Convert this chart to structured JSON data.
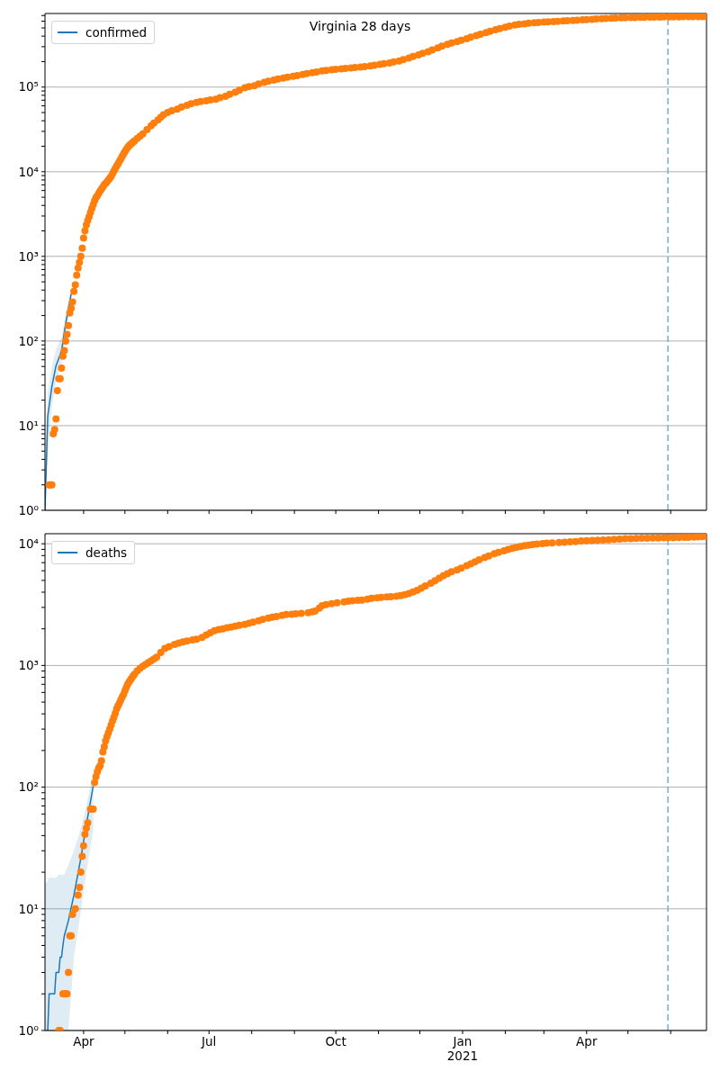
{
  "chart_data": [
    {
      "type": "line",
      "title": "Virginia 28 days",
      "log": "y",
      "grid": "y",
      "legend": "top left",
      "tick_labels": "y",
      "xlim": [
        "2020-03-04",
        "2021-06-27"
      ],
      "xticks": [
        {
          "value": "2020-04-01",
          "label": null
        },
        {
          "value": "2020-05-01",
          "label": null
        },
        {
          "value": "2020-06-01",
          "label": null
        },
        {
          "value": "2020-07-01",
          "label": null
        },
        {
          "value": "2020-08-01",
          "label": null
        },
        {
          "value": "2020-09-01",
          "label": null
        },
        {
          "value": "2020-10-01",
          "label": null
        },
        {
          "value": "2020-11-01",
          "label": null
        },
        {
          "value": "2020-12-01",
          "label": null
        },
        {
          "value": "2021-01-01",
          "label": null
        },
        {
          "value": "2021-02-01",
          "label": null
        },
        {
          "value": "2021-03-01",
          "label": null
        },
        {
          "value": "2021-04-01",
          "label": null
        },
        {
          "value": "2021-05-01",
          "label": null
        },
        {
          "value": "2021-06-01",
          "label": null
        }
      ],
      "ylim": [
        1,
        740000
      ],
      "yticks": [
        {
          "value": 1,
          "label": "10⁰"
        },
        {
          "value": 2,
          "label": null
        },
        {
          "value": 3,
          "label": null
        },
        {
          "value": 4,
          "label": null
        },
        {
          "value": 5,
          "label": null
        },
        {
          "value": 6,
          "label": null
        },
        {
          "value": 7,
          "label": null
        },
        {
          "value": 8,
          "label": null
        },
        {
          "value": 9,
          "label": null
        },
        {
          "value": 10,
          "label": "10¹"
        },
        {
          "value": 20,
          "label": null
        },
        {
          "value": 30,
          "label": null
        },
        {
          "value": 40,
          "label": null
        },
        {
          "value": 50,
          "label": null
        },
        {
          "value": 60,
          "label": null
        },
        {
          "value": 70,
          "label": null
        },
        {
          "value": 80,
          "label": null
        },
        {
          "value": 90,
          "label": null
        },
        {
          "value": 100,
          "label": "10²"
        },
        {
          "value": 200,
          "label": null
        },
        {
          "value": 300,
          "label": null
        },
        {
          "value": 400,
          "label": null
        },
        {
          "value": 500,
          "label": null
        },
        {
          "value": 600,
          "label": null
        },
        {
          "value": 700,
          "label": null
        },
        {
          "value": 800,
          "label": null
        },
        {
          "value": 900,
          "label": null
        },
        {
          "value": 1000,
          "label": "10³"
        },
        {
          "value": 2000,
          "label": null
        },
        {
          "value": 3000,
          "label": null
        },
        {
          "value": 4000,
          "label": null
        },
        {
          "value": 5000,
          "label": null
        },
        {
          "value": 6000,
          "label": null
        },
        {
          "value": 7000,
          "label": null
        },
        {
          "value": 8000,
          "label": null
        },
        {
          "value": 9000,
          "label": null
        },
        {
          "value": 10000,
          "label": "10⁴"
        },
        {
          "value": 20000,
          "label": null
        },
        {
          "value": 30000,
          "label": null
        },
        {
          "value": 40000,
          "label": null
        },
        {
          "value": 50000,
          "label": null
        },
        {
          "value": 60000,
          "label": null
        },
        {
          "value": 70000,
          "label": null
        },
        {
          "value": 80000,
          "label": null
        },
        {
          "value": 90000,
          "label": null
        },
        {
          "value": 100000,
          "label": "10⁵"
        },
        {
          "value": 200000,
          "label": null
        },
        {
          "value": 300000,
          "label": null
        },
        {
          "value": 400000,
          "label": null
        },
        {
          "value": 500000,
          "label": null
        },
        {
          "value": 600000,
          "label": null
        },
        {
          "value": 700000,
          "label": null
        }
      ],
      "ref_lines": [
        {
          "axis": "x",
          "value": "2021-05-30",
          "color": "#79aed4",
          "line_style": "dashed"
        }
      ],
      "series": [
        {
          "name": "confirmed",
          "type": "line",
          "color": "#1f77b4",
          "x": [
            "2020-03-04",
            "2020-03-06",
            "2020-03-09",
            "2020-03-12",
            "2020-03-16",
            "2020-03-19",
            "2020-03-23"
          ],
          "values": [
            1,
            13,
            29,
            51,
            76,
            160,
            360
          ],
          "lower": [
            1,
            5,
            17,
            33,
            55,
            120,
            290
          ],
          "upper": [
            3,
            25,
            50,
            80,
            110,
            210,
            440
          ]
        },
        {
          "type": "scatter",
          "color": "#ff7f0e",
          "marker": "circle",
          "x": [
            "2020-03-07",
            "2020-03-08",
            "2020-03-09",
            "2020-03-10",
            "2020-03-11",
            "2020-03-12",
            "2020-03-13",
            "2020-03-14",
            "2020-03-15",
            "2020-03-16",
            "2020-03-17",
            "2020-03-18",
            "2020-03-19",
            "2020-03-20",
            "2020-03-21",
            "2020-03-22",
            "2020-03-23",
            "2020-03-24",
            "2020-03-25",
            "2020-03-26",
            "2020-03-27",
            "2020-03-28",
            "2020-03-29",
            "2020-03-30",
            "2020-03-31",
            "2020-04-01",
            "2020-04-02",
            "2020-04-03",
            "2020-04-04",
            "2020-04-05",
            "2020-04-06",
            "2020-04-07",
            "2020-04-08",
            "2020-04-09",
            "2020-04-10",
            "2020-04-11",
            "2020-04-12",
            "2020-04-13",
            "2020-04-14",
            "2020-04-15",
            "2020-04-16",
            "2020-04-17",
            "2020-04-18",
            "2020-04-19",
            "2020-04-20",
            "2020-04-21",
            "2020-04-22",
            "2020-04-23",
            "2020-04-24",
            "2020-04-25",
            "2020-04-26",
            "2020-04-27",
            "2020-04-28",
            "2020-04-29",
            "2020-04-30",
            "2020-05-01",
            "2020-05-02",
            "2020-05-03",
            "2020-05-04",
            "2020-05-05",
            "2020-05-06",
            "2020-05-07",
            "2020-05-08",
            "2020-05-10",
            "2020-05-12",
            "2020-05-14",
            "2020-05-17",
            "2020-05-20",
            "2020-05-22",
            "2020-05-25",
            "2020-05-27",
            "2020-05-29",
            "2020-06-01",
            "2020-06-04",
            "2020-06-08",
            "2020-06-11",
            "2020-06-15",
            "2020-06-18",
            "2020-06-22",
            "2020-06-25",
            "2020-06-29",
            "2020-07-02",
            "2020-07-06",
            "2020-07-09",
            "2020-07-13",
            "2020-07-16",
            "2020-07-20",
            "2020-07-23",
            "2020-07-27",
            "2020-07-30",
            "2020-08-03",
            "2020-08-06",
            "2020-08-10",
            "2020-08-13",
            "2020-08-17",
            "2020-08-20",
            "2020-08-24",
            "2020-08-27",
            "2020-08-31",
            "2020-09-03",
            "2020-09-07",
            "2020-09-10",
            "2020-09-14",
            "2020-09-17",
            "2020-09-21",
            "2020-09-24",
            "2020-09-28",
            "2020-10-01",
            "2020-10-05",
            "2020-10-08",
            "2020-10-12",
            "2020-10-15",
            "2020-10-19",
            "2020-10-22",
            "2020-10-26",
            "2020-10-29",
            "2020-11-02",
            "2020-11-05",
            "2020-11-09",
            "2020-11-12",
            "2020-11-16",
            "2020-11-19",
            "2020-11-23",
            "2020-11-26",
            "2020-11-30",
            "2020-12-03",
            "2020-12-07",
            "2020-12-10",
            "2020-12-14",
            "2020-12-17",
            "2020-12-21",
            "2020-12-24",
            "2020-12-28",
            "2020-12-31",
            "2021-01-04",
            "2021-01-07",
            "2021-01-11",
            "2021-01-14",
            "2021-01-18",
            "2021-01-21",
            "2021-01-25",
            "2021-01-28",
            "2021-02-01",
            "2021-02-04",
            "2021-02-08",
            "2021-02-11",
            "2021-02-15",
            "2021-02-18",
            "2021-02-22",
            "2021-02-25",
            "2021-03-01",
            "2021-03-04",
            "2021-03-08",
            "2021-03-11",
            "2021-03-15",
            "2021-03-18",
            "2021-03-22",
            "2021-03-25",
            "2021-03-29",
            "2021-04-01",
            "2021-04-05",
            "2021-04-08",
            "2021-04-12",
            "2021-04-15",
            "2021-04-19",
            "2021-04-22",
            "2021-04-26",
            "2021-04-29",
            "2021-05-03",
            "2021-05-06",
            "2021-05-10",
            "2021-05-13",
            "2021-05-17",
            "2021-05-20",
            "2021-05-24",
            "2021-05-27",
            "2021-05-31",
            "2021-06-03",
            "2021-06-07",
            "2021-06-10",
            "2021-06-14",
            "2021-06-17",
            "2021-06-21",
            "2021-06-24",
            "2021-06-27"
          ],
          "values": [
            2,
            2,
            2,
            8,
            9,
            12,
            26,
            36,
            36,
            48,
            66,
            77,
            100,
            120,
            152,
            214,
            244,
            290,
            385,
            460,
            600,
            730,
            850,
            1000,
            1250,
            1650,
            2000,
            2350,
            2650,
            2950,
            3300,
            3700,
            4100,
            4550,
            4950,
            5200,
            5550,
            5900,
            6250,
            6600,
            7000,
            7300,
            7600,
            8000,
            8400,
            8800,
            9500,
            10200,
            10900,
            11700,
            12400,
            13300,
            14200,
            15200,
            16200,
            17300,
            18400,
            19400,
            20300,
            21000,
            21700,
            22400,
            23100,
            24800,
            26300,
            28000,
            31500,
            35000,
            37500,
            41000,
            44000,
            47000,
            50000,
            52500,
            55000,
            58000,
            61000,
            63500,
            66000,
            67500,
            69000,
            70500,
            72000,
            75000,
            78000,
            82000,
            87000,
            92000,
            98000,
            101000,
            104000,
            109000,
            114000,
            117000,
            121000,
            125000,
            128000,
            131000,
            134000,
            137000,
            141000,
            144000,
            148000,
            151000,
            155000,
            157000,
            160000,
            162000,
            164000,
            166000,
            168000,
            170000,
            172000,
            175000,
            178000,
            181000,
            185000,
            189000,
            193000,
            198000,
            203000,
            211000,
            220000,
            230000,
            240000,
            250000,
            262000,
            275000,
            290000,
            305000,
            320000,
            332000,
            345000,
            358000,
            372000,
            388000,
            405000,
            422000,
            440000,
            457000,
            475000,
            492000,
            510000,
            525000,
            540000,
            550000,
            560000,
            568000,
            575000,
            580000,
            585000,
            590000,
            595000,
            599000,
            603000,
            607000,
            612000,
            617000,
            622000,
            627000,
            632000,
            637000,
            642000,
            646000,
            650000,
            654000,
            657000,
            660000,
            662000,
            664000,
            666000,
            668000,
            670000,
            672000,
            673000,
            674000,
            675000,
            676000,
            677000,
            678000,
            678000,
            679000,
            679000,
            680000,
            680000
          ]
        }
      ]
    },
    {
      "type": "line",
      "log": "y",
      "grid": "y",
      "legend": "top left",
      "xlim": [
        "2020-03-04",
        "2021-06-27"
      ],
      "xticks": [
        {
          "value": "2020-04-01",
          "label": "Apr"
        },
        {
          "value": "2020-05-01",
          "label": null
        },
        {
          "value": "2020-06-01",
          "label": null
        },
        {
          "value": "2020-07-01",
          "label": "Jul"
        },
        {
          "value": "2020-08-01",
          "label": null
        },
        {
          "value": "2020-09-01",
          "label": null
        },
        {
          "value": "2020-10-01",
          "label": "Oct"
        },
        {
          "value": "2020-11-01",
          "label": null
        },
        {
          "value": "2020-12-01",
          "label": null
        },
        {
          "value": "2021-01-01",
          "label": "Jan\n2021"
        },
        {
          "value": "2021-02-01",
          "label": null
        },
        {
          "value": "2021-03-01",
          "label": null
        },
        {
          "value": "2021-04-01",
          "label": "Apr"
        },
        {
          "value": "2021-05-01",
          "label": null
        },
        {
          "value": "2021-06-01",
          "label": null
        }
      ],
      "ylim": [
        1,
        12100
      ],
      "yticks": [
        {
          "value": 1,
          "label": "10⁰"
        },
        {
          "value": 2,
          "label": null
        },
        {
          "value": 3,
          "label": null
        },
        {
          "value": 4,
          "label": null
        },
        {
          "value": 5,
          "label": null
        },
        {
          "value": 6,
          "label": null
        },
        {
          "value": 7,
          "label": null
        },
        {
          "value": 8,
          "label": null
        },
        {
          "value": 9,
          "label": null
        },
        {
          "value": 10,
          "label": "10¹"
        },
        {
          "value": 20,
          "label": null
        },
        {
          "value": 30,
          "label": null
        },
        {
          "value": 40,
          "label": null
        },
        {
          "value": 50,
          "label": null
        },
        {
          "value": 60,
          "label": null
        },
        {
          "value": 70,
          "label": null
        },
        {
          "value": 80,
          "label": null
        },
        {
          "value": 90,
          "label": null
        },
        {
          "value": 100,
          "label": "10²"
        },
        {
          "value": 200,
          "label": null
        },
        {
          "value": 300,
          "label": null
        },
        {
          "value": 400,
          "label": null
        },
        {
          "value": 500,
          "label": null
        },
        {
          "value": 600,
          "label": null
        },
        {
          "value": 700,
          "label": null
        },
        {
          "value": 800,
          "label": null
        },
        {
          "value": 900,
          "label": null
        },
        {
          "value": 1000,
          "label": "10³"
        },
        {
          "value": 2000,
          "label": null
        },
        {
          "value": 3000,
          "label": null
        },
        {
          "value": 4000,
          "label": null
        },
        {
          "value": 5000,
          "label": null
        },
        {
          "value": 6000,
          "label": null
        },
        {
          "value": 7000,
          "label": null
        },
        {
          "value": 8000,
          "label": null
        },
        {
          "value": 9000,
          "label": null
        },
        {
          "value": 10000,
          "label": "10⁴"
        }
      ],
      "ref_lines": [
        {
          "axis": "x",
          "value": "2021-05-30",
          "color": "#79aed4",
          "line_style": "dashed"
        }
      ],
      "series": [
        {
          "name": "deaths",
          "type": "line",
          "color": "#1f77b4",
          "x": [
            "2020-03-04",
            "2020-03-06",
            "2020-03-07",
            "2020-03-11",
            "2020-03-12",
            "2020-03-14",
            "2020-03-15",
            "2020-03-16",
            "2020-03-17",
            "2020-03-18",
            "2020-03-21",
            "2020-03-25",
            "2020-03-30",
            "2020-04-03",
            "2020-04-08"
          ],
          "values": [
            null,
            1,
            2,
            2,
            3,
            3,
            4,
            4,
            5,
            6,
            8,
            13,
            26,
            49,
            102
          ],
          "lower": [
            1,
            1,
            1,
            1,
            1,
            1,
            1,
            1,
            1,
            1,
            1,
            4,
            9.5,
            20,
            45
          ],
          "upper": [
            16,
            17,
            18,
            18,
            18,
            19,
            19,
            19,
            19,
            19,
            23,
            30,
            46,
            70,
            130
          ]
        },
        {
          "type": "scatter",
          "color": "#ff7f0e",
          "marker": "circle",
          "x": [
            "2020-03-14",
            "2020-03-15",
            "2020-03-17",
            "2020-03-18",
            "2020-03-19",
            "2020-03-20",
            "2020-03-21",
            "2020-03-22",
            "2020-03-23",
            "2020-03-24",
            "2020-03-26",
            "2020-03-28",
            "2020-03-29",
            "2020-03-30",
            "2020-03-31",
            "2020-04-01",
            "2020-04-02",
            "2020-04-03",
            "2020-04-04",
            "2020-04-06",
            "2020-04-07",
            "2020-04-08",
            "2020-04-09",
            "2020-04-10",
            "2020-04-11",
            "2020-04-12",
            "2020-04-13",
            "2020-04-14",
            "2020-04-15",
            "2020-04-16",
            "2020-04-17",
            "2020-04-18",
            "2020-04-19",
            "2020-04-20",
            "2020-04-21",
            "2020-04-22",
            "2020-04-23",
            "2020-04-24",
            "2020-04-25",
            "2020-04-26",
            "2020-04-27",
            "2020-04-28",
            "2020-04-29",
            "2020-04-30",
            "2020-05-01",
            "2020-05-02",
            "2020-05-03",
            "2020-05-04",
            "2020-05-05",
            "2020-05-06",
            "2020-05-07",
            "2020-05-08",
            "2020-05-10",
            "2020-05-12",
            "2020-05-14",
            "2020-05-16",
            "2020-05-18",
            "2020-05-20",
            "2020-05-22",
            "2020-05-24",
            "2020-05-27",
            "2020-05-30",
            "2020-06-02",
            "2020-06-06",
            "2020-06-09",
            "2020-06-12",
            "2020-06-15",
            "2020-06-19",
            "2020-06-22",
            "2020-06-26",
            "2020-06-29",
            "2020-07-02",
            "2020-07-05",
            "2020-07-08",
            "2020-07-11",
            "2020-07-14",
            "2020-07-17",
            "2020-07-20",
            "2020-07-23",
            "2020-07-27",
            "2020-07-30",
            "2020-08-02",
            "2020-08-06",
            "2020-08-09",
            "2020-08-13",
            "2020-08-16",
            "2020-08-19",
            "2020-08-23",
            "2020-08-26",
            "2020-08-30",
            "2020-09-02",
            "2020-09-06",
            "2020-09-11",
            "2020-09-14",
            "2020-09-16",
            "2020-09-19",
            "2020-09-21",
            "2020-09-24",
            "2020-09-28",
            "2020-10-02",
            "2020-10-07",
            "2020-10-10",
            "2020-10-13",
            "2020-10-17",
            "2020-10-20",
            "2020-10-24",
            "2020-10-27",
            "2020-10-31",
            "2020-11-03",
            "2020-11-07",
            "2020-11-10",
            "2020-11-14",
            "2020-11-17",
            "2020-11-20",
            "2020-11-23",
            "2020-11-26",
            "2020-11-29",
            "2020-12-02",
            "2020-12-05",
            "2020-12-09",
            "2020-12-12",
            "2020-12-15",
            "2020-12-18",
            "2020-12-21",
            "2020-12-24",
            "2020-12-28",
            "2020-12-31",
            "2021-01-04",
            "2021-01-07",
            "2021-01-10",
            "2021-01-13",
            "2021-01-17",
            "2021-01-20",
            "2021-01-24",
            "2021-01-27",
            "2021-01-31",
            "2021-02-03",
            "2021-02-06",
            "2021-02-09",
            "2021-02-12",
            "2021-02-15",
            "2021-02-18",
            "2021-02-21",
            "2021-02-24",
            "2021-02-28",
            "2021-03-03",
            "2021-03-07",
            "2021-03-12",
            "2021-03-16",
            "2021-03-20",
            "2021-03-24",
            "2021-03-28",
            "2021-04-01",
            "2021-04-05",
            "2021-04-09",
            "2021-04-13",
            "2021-04-17",
            "2021-04-21",
            "2021-04-25",
            "2021-04-29",
            "2021-05-03",
            "2021-05-07",
            "2021-05-11",
            "2021-05-15",
            "2021-05-19",
            "2021-05-23",
            "2021-05-27",
            "2021-05-30",
            "2021-06-03",
            "2021-06-07",
            "2021-06-11",
            "2021-06-14",
            "2021-06-18",
            "2021-06-21",
            "2021-06-24",
            "2021-06-27"
          ],
          "values": [
            1,
            1,
            2,
            2,
            2,
            2,
            3,
            6,
            6,
            9,
            10,
            13,
            15,
            20,
            27,
            33,
            41,
            46,
            51,
            66,
            66,
            66,
            109,
            122,
            134,
            144,
            150,
            165,
            195,
            215,
            240,
            260,
            280,
            300,
            325,
            350,
            375,
            405,
            440,
            465,
            490,
            520,
            550,
            580,
            620,
            660,
            700,
            730,
            760,
            790,
            820,
            850,
            905,
            950,
            985,
            1020,
            1055,
            1090,
            1130,
            1170,
            1280,
            1380,
            1430,
            1490,
            1530,
            1560,
            1590,
            1620,
            1640,
            1700,
            1780,
            1860,
            1930,
            1970,
            2000,
            2040,
            2070,
            2100,
            2140,
            2180,
            2220,
            2270,
            2330,
            2390,
            2450,
            2490,
            2530,
            2580,
            2620,
            2640,
            2660,
            2680,
            2710,
            2760,
            2800,
            2950,
            3100,
            3160,
            3220,
            3270,
            3330,
            3370,
            3400,
            3430,
            3450,
            3510,
            3560,
            3600,
            3630,
            3650,
            3680,
            3710,
            3750,
            3820,
            3900,
            4010,
            4140,
            4310,
            4500,
            4740,
            4970,
            5200,
            5450,
            5680,
            5900,
            6100,
            6300,
            6600,
            6850,
            7100,
            7380,
            7710,
            7950,
            8300,
            8500,
            8750,
            8980,
            9180,
            9350,
            9500,
            9640,
            9750,
            9850,
            9950,
            10050,
            10100,
            10170,
            10250,
            10300,
            10370,
            10430,
            10550,
            10620,
            10670,
            10700,
            10750,
            10800,
            10870,
            10940,
            11000,
            11040,
            11070,
            11100,
            11120,
            11140,
            11170,
            11190,
            11200,
            11220,
            11250,
            11280,
            11300,
            11350,
            11400,
            11450,
            11500
          ]
        }
      ]
    }
  ]
}
